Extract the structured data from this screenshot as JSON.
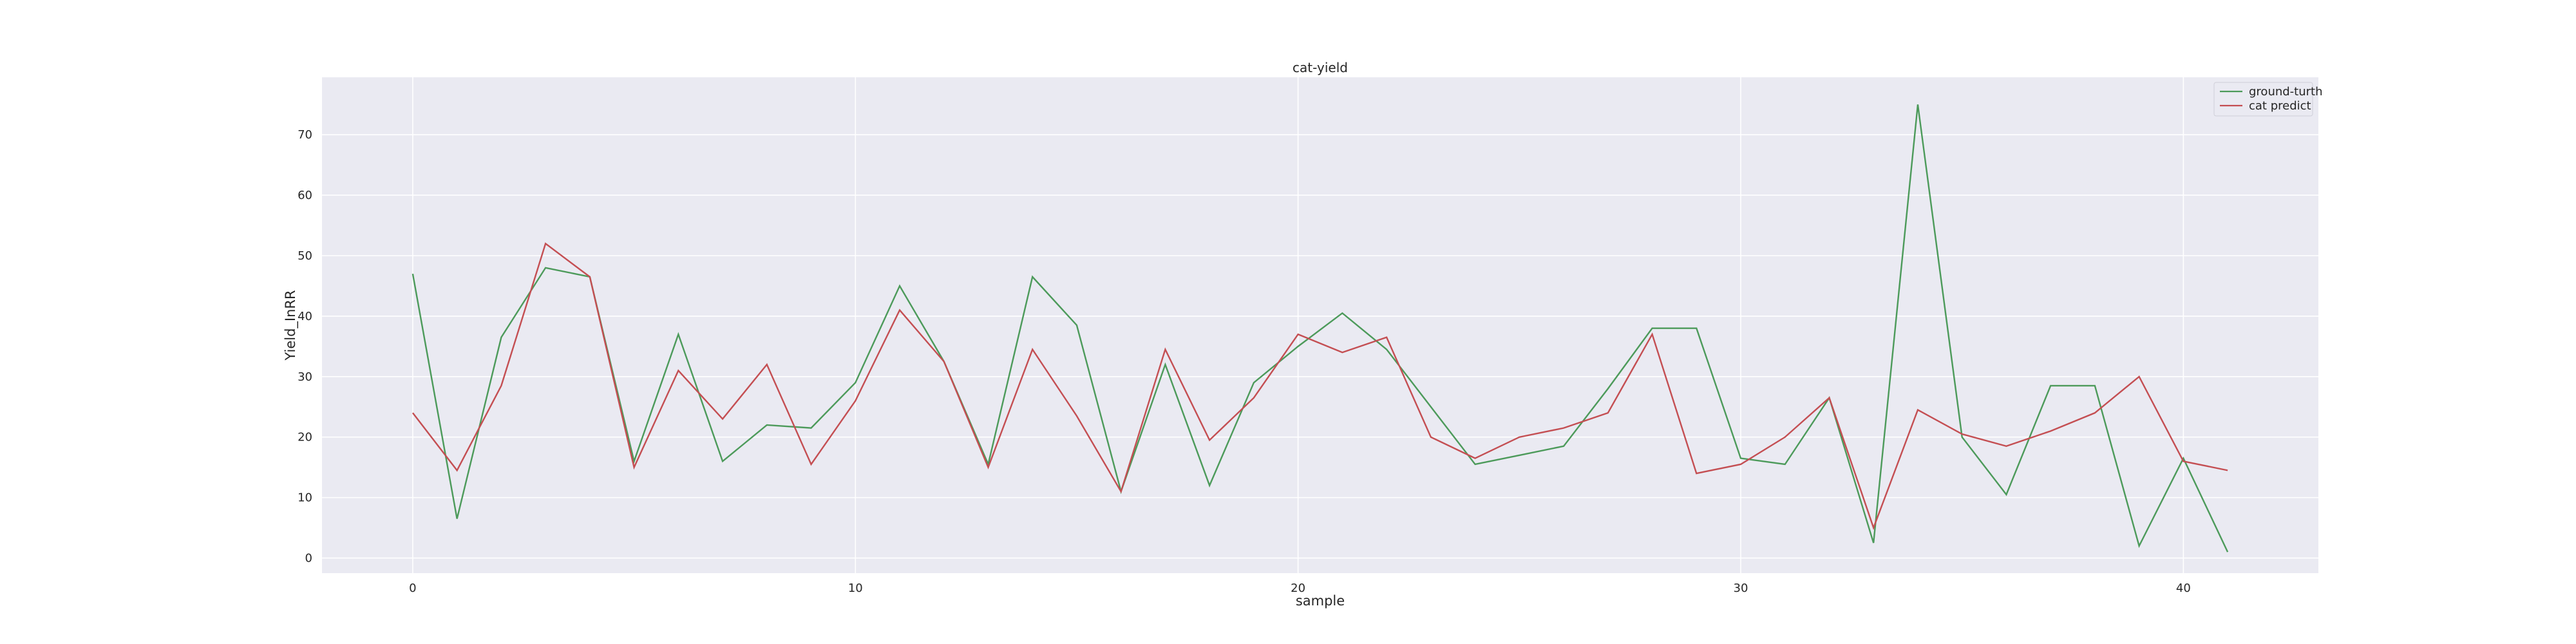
{
  "chart_data": {
    "type": "line",
    "title": "cat-yield",
    "xlabel": "sample",
    "ylabel": "Yield_InRR",
    "xlim": [
      -2.05,
      43.05
    ],
    "ylim": [
      -2.5,
      79.5
    ],
    "xticks": [
      0,
      10,
      20,
      30,
      40
    ],
    "yticks": [
      0,
      10,
      20,
      30,
      40,
      50,
      60,
      70
    ],
    "grid": true,
    "legend_position": "top-right",
    "x": [
      0,
      1,
      2,
      3,
      4,
      5,
      6,
      7,
      8,
      9,
      10,
      11,
      12,
      13,
      14,
      15,
      16,
      17,
      18,
      19,
      20,
      21,
      22,
      23,
      24,
      25,
      26,
      27,
      28,
      29,
      30,
      31,
      32,
      33,
      34,
      35,
      36,
      37,
      38,
      39,
      40,
      41
    ],
    "series": [
      {
        "name": "ground-turth",
        "color": "#4c9a5a",
        "values": [
          47.0,
          6.5,
          36.5,
          48.0,
          46.5,
          16.0,
          37.0,
          16.0,
          22.0,
          21.5,
          29.0,
          45.0,
          32.5,
          15.5,
          46.5,
          38.5,
          11.0,
          32.0,
          12.0,
          29.0,
          35.0,
          40.5,
          34.5,
          25.0,
          15.5,
          17.0,
          18.5,
          28.0,
          38.0,
          38.0,
          16.5,
          15.5,
          26.5,
          2.5,
          75.0,
          20.0,
          10.5,
          28.5,
          28.5,
          2.0,
          16.5,
          1.0
        ]
      },
      {
        "name": "cat predict",
        "color": "#c44e52",
        "values": [
          24.0,
          14.5,
          28.5,
          52.0,
          46.5,
          15.0,
          31.0,
          23.0,
          32.0,
          15.5,
          26.0,
          41.0,
          32.5,
          15.0,
          34.5,
          23.5,
          11.0,
          34.5,
          19.5,
          26.5,
          37.0,
          34.0,
          36.5,
          20.0,
          16.5,
          20.0,
          21.5,
          24.0,
          37.0,
          14.0,
          15.5,
          20.0,
          26.5,
          5.0,
          24.5,
          20.5,
          18.5,
          21.0,
          24.0,
          30.0,
          16.0,
          14.5
        ]
      }
    ]
  }
}
